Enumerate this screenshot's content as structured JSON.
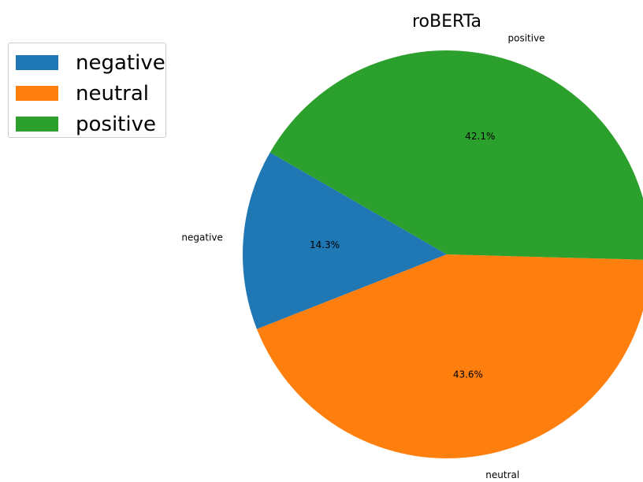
{
  "chart_data": {
    "type": "pie",
    "title": "roBERTa",
    "categories": [
      "negative",
      "neutral",
      "positive"
    ],
    "values": [
      14.3,
      43.6,
      42.1
    ],
    "value_labels": [
      "14.3%",
      "43.6%",
      "42.1%"
    ],
    "colors": [
      "#1f77b4",
      "#ff7f0e",
      "#2ca02c"
    ],
    "legend": {
      "placement": "upper-left",
      "entries": [
        "negative",
        "neutral",
        "positive"
      ]
    }
  }
}
